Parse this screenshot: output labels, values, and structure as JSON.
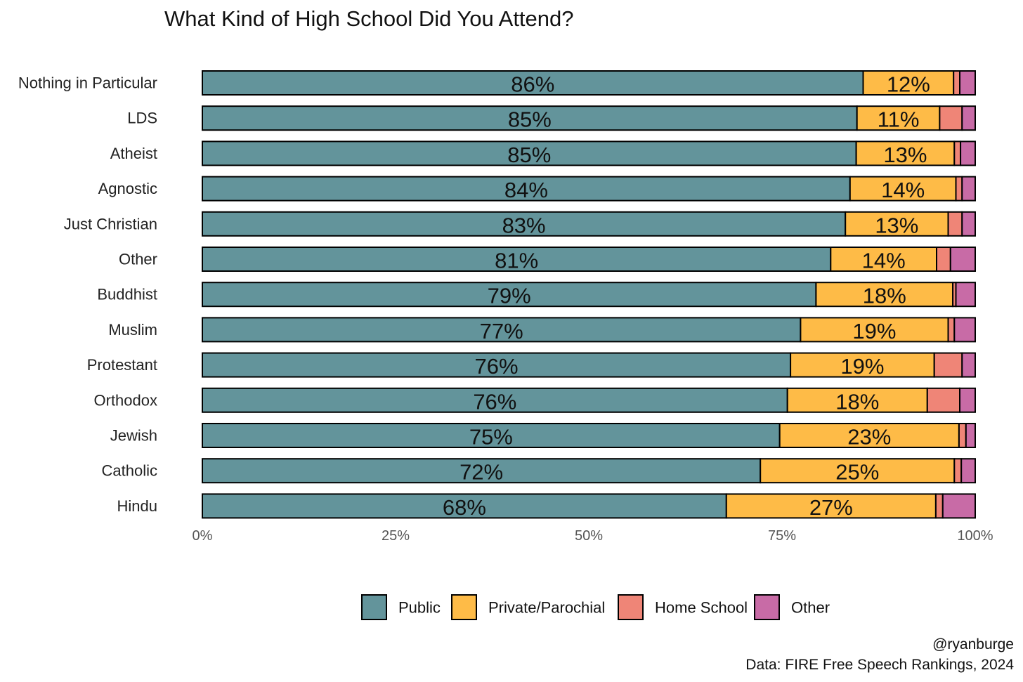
{
  "chart_data": {
    "type": "bar",
    "orientation": "horizontal",
    "stacked": true,
    "title": "What Kind of High School Did You Attend?",
    "categories": [
      "Nothing in Particular",
      "LDS",
      "Atheist",
      "Agnostic",
      "Just Christian",
      "Other",
      "Buddhist",
      "Muslim",
      "Protestant",
      "Orthodox",
      "Jewish",
      "Catholic",
      "Hindu"
    ],
    "series": [
      {
        "name": "Public",
        "color": "#63949B",
        "values": [
          85.5,
          84.7,
          84.6,
          83.8,
          83.2,
          81.3,
          79.4,
          77.4,
          76.1,
          75.7,
          74.7,
          72.2,
          67.8
        ]
      },
      {
        "name": "Private/Parochial",
        "color": "#FEBB47",
        "values": [
          11.7,
          10.7,
          12.7,
          13.7,
          13.3,
          13.7,
          17.7,
          19.1,
          18.6,
          18.1,
          23.2,
          25.1,
          27.1
        ]
      },
      {
        "name": "Home School",
        "color": "#EF8577",
        "values": [
          0.8,
          2.9,
          0.8,
          0.8,
          1.8,
          1.8,
          0.4,
          0.8,
          3.6,
          4.2,
          0.9,
          0.9,
          0.9
        ]
      },
      {
        "name": "Other",
        "color": "#C86BA6",
        "values": [
          2.0,
          1.7,
          1.9,
          1.7,
          1.7,
          3.2,
          2.5,
          2.7,
          1.7,
          2.0,
          1.2,
          1.8,
          4.2
        ]
      }
    ],
    "data_labels": {
      "Public": [
        "86%",
        "85%",
        "85%",
        "84%",
        "83%",
        "81%",
        "79%",
        "77%",
        "76%",
        "76%",
        "75%",
        "72%",
        "68%"
      ],
      "Private/Parochial": [
        "12%",
        "11%",
        "13%",
        "14%",
        "13%",
        "14%",
        "18%",
        "19%",
        "19%",
        "18%",
        "23%",
        "25%",
        "27%"
      ]
    },
    "x_ticks": [
      "0%",
      "25%",
      "50%",
      "75%",
      "100%"
    ],
    "xlim": [
      0,
      100
    ],
    "xlabel": "",
    "ylabel": "",
    "grid": false,
    "legend_position": "bottom"
  },
  "caption": {
    "handle": "@ryanburge",
    "source": "Data: FIRE Free Speech Rankings, 2024"
  }
}
